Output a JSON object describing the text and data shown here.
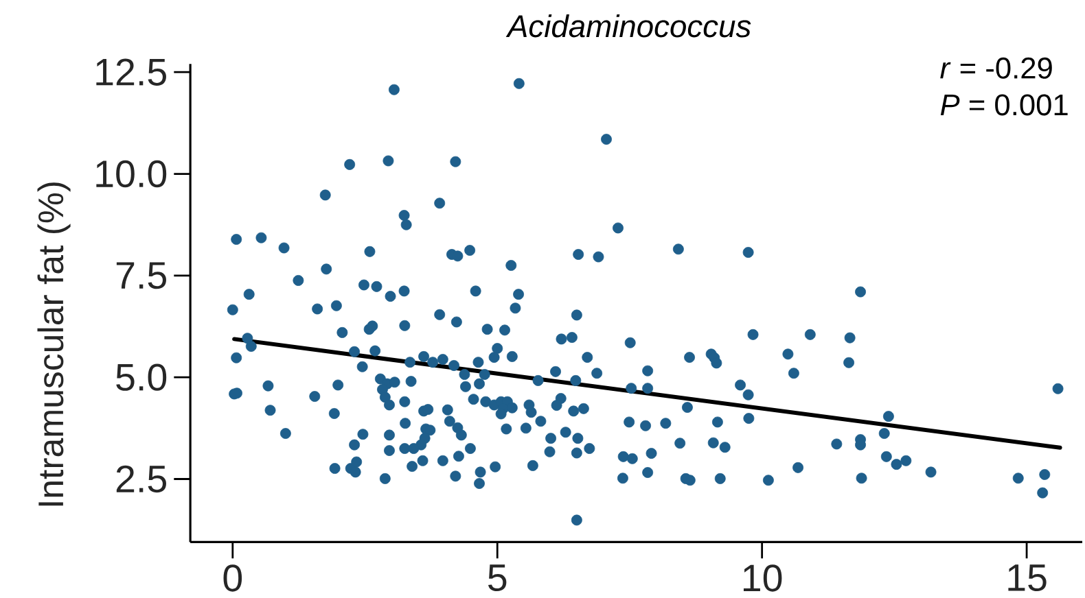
{
  "chart_data": {
    "type": "scatter",
    "title": "Acidaminococcus",
    "ylabel": "Intramuscular fat (%)",
    "annotations": [
      "*r* = -0.29",
      "*P* = 0.001"
    ],
    "marker": "circle",
    "series": [
      {
        "color": "#1f5f8c",
        "x": [
          3.05,
          5.41,
          7.06,
          2.21,
          2.94,
          4.21,
          1.75,
          3.91,
          3.24,
          3.28,
          7.28,
          0.07,
          0.54,
          0.97,
          2.59,
          4.14,
          4.25,
          4.48,
          6.53,
          6.91,
          5.26,
          1.24,
          1.77,
          2.48,
          2.72,
          2.98,
          3.24,
          4.59,
          5.4,
          0.31,
          0.0,
          1.6,
          1.96,
          5.34,
          3.91,
          6.5,
          8.42,
          9.74,
          11.86,
          4.23,
          2.07,
          2.58,
          2.64,
          3.25,
          4.81,
          5.14,
          6.21,
          6.41,
          7.51,
          0.28,
          0.35,
          0.07,
          2.3,
          2.69,
          2.45,
          3.35,
          3.61,
          3.78,
          3.97,
          4.18,
          4.64,
          5.0,
          4.94,
          5.28,
          6.1,
          6.7,
          6.88,
          4.38,
          4.76,
          5.77,
          6.48,
          7.53,
          0.08,
          0.03,
          0.67,
          1.99,
          1.55,
          2.79,
          2.92,
          3.06,
          3.37,
          2.83,
          2.88,
          2.96,
          3.25,
          4.4,
          4.66,
          4.55,
          4.78,
          4.94,
          5.07,
          5.19,
          5.11,
          5.28,
          5.07,
          5.6,
          5.64,
          6.2,
          6.12,
          6.44,
          6.63,
          0.71,
          1.92,
          3.61,
          3.69,
          4.06,
          4.1,
          4.32,
          4.25,
          3.26,
          3.65,
          3.73,
          3.63,
          3.56,
          5.82,
          5.54,
          5.17,
          6.29,
          6.01,
          6.52,
          7.49,
          1.0,
          2.46,
          2.96,
          2.3,
          2.96,
          3.25,
          3.42,
          4.49,
          5.99,
          6.5,
          6.74,
          7.38,
          7.55,
          1.93,
          2.23,
          2.34,
          2.32,
          2.88,
          3.39,
          3.59,
          3.97,
          4.27,
          4.21,
          4.68,
          4.66,
          4.96,
          5.67,
          7.37,
          6.5,
          9.83,
          10.91,
          11.66,
          8.63,
          9.04,
          9.1,
          9.14,
          10.49,
          10.6,
          11.64,
          7.84,
          7.84,
          9.59,
          9.74,
          15.59,
          8.59,
          9.75,
          7.8,
          8.18,
          9.16,
          12.39,
          12.31,
          8.45,
          9.08,
          9.3,
          11.41,
          11.86,
          11.86,
          7.91,
          12.35,
          12.54,
          12.72,
          7.84,
          8.56,
          8.64,
          9.21,
          10.12,
          10.68,
          11.88,
          13.19,
          14.84,
          15.34,
          15.3
        ],
        "values": [
          12.07,
          12.22,
          10.85,
          10.23,
          10.32,
          10.3,
          9.48,
          9.28,
          8.98,
          8.75,
          8.67,
          8.39,
          8.43,
          8.18,
          8.09,
          8.02,
          7.98,
          8.12,
          8.02,
          7.96,
          7.75,
          7.38,
          7.66,
          7.27,
          7.23,
          6.99,
          7.12,
          7.12,
          7.04,
          7.04,
          6.66,
          6.68,
          6.76,
          6.7,
          6.54,
          6.53,
          8.15,
          8.07,
          7.1,
          6.36,
          6.1,
          6.18,
          6.26,
          6.27,
          6.18,
          6.16,
          5.94,
          5.98,
          5.85,
          5.96,
          5.76,
          5.48,
          5.63,
          5.65,
          5.26,
          5.37,
          5.51,
          5.37,
          5.44,
          5.29,
          5.37,
          5.71,
          5.49,
          5.51,
          5.14,
          5.49,
          5.1,
          5.07,
          5.07,
          4.92,
          4.92,
          4.73,
          4.61,
          4.59,
          4.79,
          4.81,
          4.53,
          4.96,
          4.84,
          4.88,
          4.9,
          4.7,
          4.51,
          4.32,
          4.4,
          4.77,
          4.84,
          4.46,
          4.4,
          4.32,
          4.4,
          4.4,
          4.23,
          4.25,
          4.1,
          4.32,
          4.14,
          4.48,
          4.31,
          4.17,
          4.23,
          4.19,
          4.11,
          4.17,
          4.21,
          4.2,
          3.92,
          3.58,
          3.76,
          3.87,
          3.73,
          3.7,
          3.5,
          3.34,
          3.92,
          3.75,
          3.73,
          3.65,
          3.5,
          3.5,
          3.9,
          3.62,
          3.6,
          3.58,
          3.34,
          3.2,
          3.25,
          3.25,
          3.25,
          3.17,
          3.14,
          3.25,
          3.05,
          3.0,
          2.76,
          2.76,
          2.92,
          2.67,
          2.51,
          2.81,
          2.95,
          2.95,
          3.06,
          2.57,
          2.67,
          2.39,
          2.8,
          2.83,
          2.52,
          1.49,
          6.05,
          6.05,
          5.97,
          5.49,
          5.57,
          5.48,
          5.35,
          5.57,
          5.1,
          5.36,
          5.16,
          4.73,
          4.81,
          4.57,
          4.72,
          4.26,
          3.99,
          3.81,
          3.87,
          3.9,
          4.04,
          3.62,
          3.38,
          3.39,
          3.28,
          3.36,
          3.47,
          3.34,
          3.13,
          3.05,
          2.86,
          2.95,
          2.66,
          2.51,
          2.47,
          2.51,
          2.47,
          2.78,
          2.52,
          2.67,
          2.52,
          2.61,
          2.16
        ]
      },
      {
        "type": "line",
        "color": "#000000",
        "marker": "none",
        "line_style": "solid",
        "x": [
          0.03,
          15.63
        ],
        "values": [
          5.94,
          3.27
        ]
      }
    ],
    "xlim": [
      -0.8,
      16.05
    ],
    "ylim": [
      0.95,
      12.7
    ],
    "xticks": [
      0,
      5,
      10,
      15
    ],
    "yticks": [
      2.5,
      {
        "value": 5,
        "label": "5.0"
      },
      7.5,
      {
        "value": 10,
        "label": "10.0"
      },
      12.5
    ]
  }
}
